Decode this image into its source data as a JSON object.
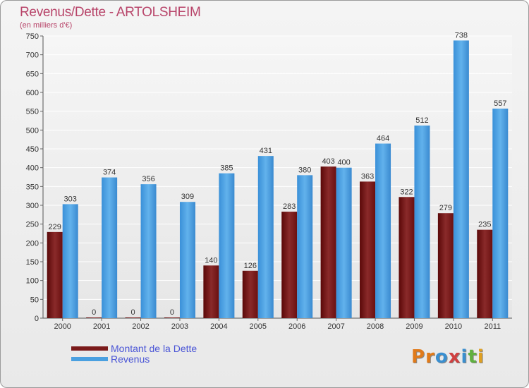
{
  "title": "Revenus/Dette - ARTOLSHEIM",
  "subtitle": "(en milliers d'€)",
  "legend": {
    "dette": "Montant de la Dette",
    "revenus": "Revenus"
  },
  "logo": {
    "letters": [
      "P",
      "r",
      "o",
      "x",
      "i",
      "t",
      "i"
    ]
  },
  "colors": {
    "dette": "#7a1a1a",
    "revenus": "#4aa0e0",
    "logo": [
      "#e07a1a",
      "#e07a1a",
      "#3a8fd0",
      "#d04040",
      "#3a8fd0",
      "#60b040",
      "#e0a020"
    ]
  },
  "chart_data": {
    "type": "bar",
    "title": "Revenus/Dette - ARTOLSHEIM",
    "ylabel": "(en milliers d'€)",
    "xlabel": "",
    "ylim": [
      0,
      750
    ],
    "yticks": [
      0,
      50,
      100,
      150,
      200,
      250,
      300,
      350,
      400,
      450,
      500,
      550,
      600,
      650,
      700,
      750
    ],
    "categories": [
      "2000",
      "2001",
      "2002",
      "2003",
      "2004",
      "2005",
      "2006",
      "2007",
      "2008",
      "2009",
      "2010",
      "2011"
    ],
    "series": [
      {
        "name": "Montant de la Dette",
        "values": [
          229,
          0,
          0,
          0,
          140,
          126,
          283,
          403,
          363,
          322,
          279,
          235
        ]
      },
      {
        "name": "Revenus",
        "values": [
          303,
          374,
          356,
          309,
          385,
          431,
          380,
          400,
          464,
          512,
          738,
          557
        ]
      }
    ],
    "grid": true,
    "legend_position": "bottom-left"
  }
}
